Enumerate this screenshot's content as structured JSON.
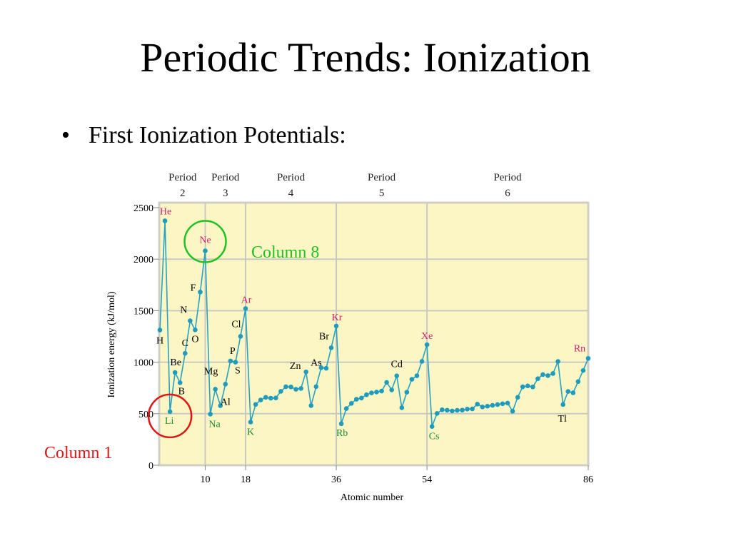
{
  "slide": {
    "title": "Periodic Trends:  Ionization",
    "bullet": "First Ionization Potentials:"
  },
  "colors": {
    "plot_background": "#fbf6c4",
    "plot_border": "#cfcfc4",
    "line": "#27a2c2",
    "point": "#1e9bbd",
    "noble_gas_label": "#d4206f",
    "alkali_label": "#1f8a3a",
    "other_label": "#000000",
    "green_circle": "#22c122",
    "red_circle": "#e01515",
    "annotation_green": "#22c122",
    "annotation_red": "#e01515"
  },
  "chart_data": {
    "type": "line",
    "xlabel": "Atomic number",
    "ylabel": "Ionization energy (kJ/mol)",
    "ylim": [
      0,
      2500
    ],
    "xlim": [
      1,
      86
    ],
    "y_ticks": [
      0,
      500,
      1000,
      1500,
      2000,
      2500
    ],
    "x_ticks": [
      10,
      18,
      36,
      54,
      86
    ],
    "grid": true,
    "period_boundaries": [
      10,
      18,
      36,
      54
    ],
    "period_headers": [
      {
        "line1": "Period",
        "line2": "2",
        "x": 5.5
      },
      {
        "line1": "Period",
        "line2": "3",
        "x": 14
      },
      {
        "line1": "Period",
        "line2": "4",
        "x": 27
      },
      {
        "line1": "Period",
        "line2": "5",
        "x": 45
      },
      {
        "line1": "Period",
        "line2": "6",
        "x": 70
      }
    ],
    "series": [
      {
        "x": [
          1,
          2,
          3,
          4,
          5,
          6,
          7,
          8,
          9,
          10,
          11,
          12,
          13,
          14,
          15,
          16,
          17,
          18,
          19,
          20,
          21,
          22,
          23,
          24,
          25,
          26,
          27,
          28,
          29,
          30,
          31,
          32,
          33,
          34,
          35,
          36,
          37,
          38,
          39,
          40,
          41,
          42,
          43,
          44,
          45,
          46,
          47,
          48,
          49,
          50,
          51,
          52,
          53,
          54,
          55,
          56,
          57,
          58,
          59,
          60,
          61,
          62,
          63,
          64,
          65,
          66,
          67,
          68,
          69,
          70,
          71,
          72,
          73,
          74,
          75,
          76,
          77,
          78,
          79,
          80,
          81,
          82,
          83,
          84,
          85,
          86
        ],
        "values": [
          1312,
          2372,
          520,
          900,
          801,
          1086,
          1402,
          1314,
          1681,
          2081,
          496,
          738,
          578,
          787,
          1012,
          1000,
          1251,
          1521,
          419,
          590,
          633,
          659,
          651,
          653,
          717,
          762,
          760,
          737,
          745,
          906,
          579,
          762,
          947,
          941,
          1140,
          1351,
          403,
          550,
          600,
          640,
          652,
          684,
          702,
          710,
          720,
          804,
          731,
          868,
          558,
          709,
          834,
          869,
          1008,
          1170,
          376,
          503,
          538,
          534,
          527,
          533,
          535,
          545,
          547,
          593,
          566,
          573,
          581,
          589,
          597,
          603,
          524,
          659,
          761,
          770,
          760,
          840,
          880,
          870,
          890,
          1007,
          589,
          716,
          703,
          812,
          920,
          1037
        ]
      }
    ],
    "point_labels": [
      {
        "text": "H",
        "x": 1,
        "kind": "other"
      },
      {
        "text": "He",
        "x": 2,
        "kind": "noble"
      },
      {
        "text": "Li",
        "x": 3,
        "kind": "alkali"
      },
      {
        "text": "Be",
        "x": 4,
        "kind": "other"
      },
      {
        "text": "B",
        "x": 5,
        "kind": "other"
      },
      {
        "text": "C",
        "x": 6,
        "kind": "other"
      },
      {
        "text": "N",
        "x": 7,
        "kind": "other"
      },
      {
        "text": "O",
        "x": 8,
        "kind": "other"
      },
      {
        "text": "F",
        "x": 9,
        "kind": "other"
      },
      {
        "text": "Ne",
        "x": 10,
        "kind": "noble"
      },
      {
        "text": "Na",
        "x": 11,
        "kind": "alkali"
      },
      {
        "text": "Mg",
        "x": 12,
        "kind": "other"
      },
      {
        "text": "Al",
        "x": 13,
        "kind": "other"
      },
      {
        "text": "P",
        "x": 15,
        "kind": "other"
      },
      {
        "text": "S",
        "x": 16,
        "kind": "other"
      },
      {
        "text": "Cl",
        "x": 17,
        "kind": "other"
      },
      {
        "text": "Ar",
        "x": 18,
        "kind": "noble"
      },
      {
        "text": "K",
        "x": 19,
        "kind": "alkali"
      },
      {
        "text": "Zn",
        "x": 30,
        "kind": "other"
      },
      {
        "text": "As",
        "x": 33,
        "kind": "other"
      },
      {
        "text": "Br",
        "x": 35,
        "kind": "other"
      },
      {
        "text": "Kr",
        "x": 36,
        "kind": "noble"
      },
      {
        "text": "Rb",
        "x": 37,
        "kind": "alkali"
      },
      {
        "text": "Cd",
        "x": 48,
        "kind": "other"
      },
      {
        "text": "Xe",
        "x": 54,
        "kind": "noble"
      },
      {
        "text": "Cs",
        "x": 55,
        "kind": "alkali"
      },
      {
        "text": "Tl",
        "x": 81,
        "kind": "other"
      },
      {
        "text": "Rn",
        "x": 86,
        "kind": "noble"
      }
    ],
    "annotations": [
      {
        "text": "Column 8",
        "color": "green",
        "circled_element": "Ne"
      },
      {
        "text": "Column 1",
        "color": "red",
        "circled_element": "Li"
      }
    ]
  }
}
